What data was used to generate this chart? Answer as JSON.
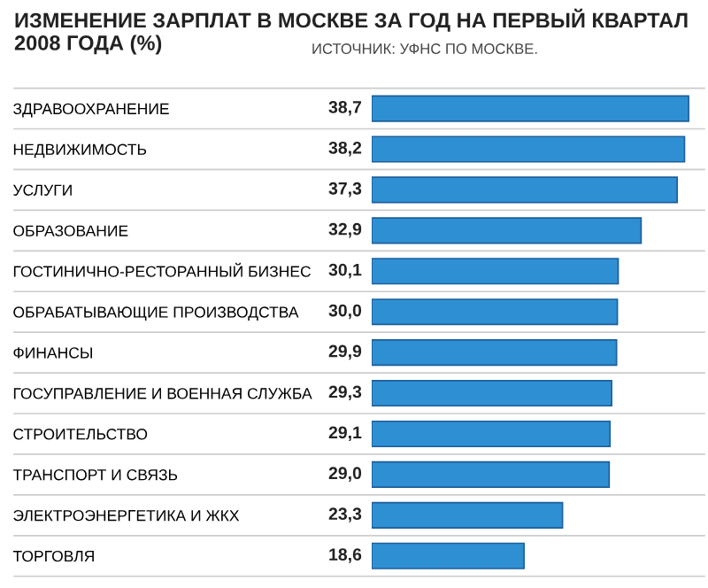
{
  "chart_data": {
    "type": "bar",
    "orientation": "horizontal",
    "title": "ИЗМЕНЕНИЕ ЗАРПЛАТ В МОСКВЕ ЗА ГОД НА ПЕРВЫЙ КВАРТАЛ 2008 ГОДА (%)",
    "annotations": [
      "ИСТОЧНИК: УФНС ПО МОСКВЕ."
    ],
    "categories": [
      "ЗДРАВООХРАНЕНИЕ",
      "НЕДВИЖИМОСТЬ",
      "УСЛУГИ",
      "ОБРАЗОВАНИЕ",
      "ГОСТИНИЧНО-РЕСТОРАННЫЙ БИЗНЕС",
      "ОБРАБАТЫВАЮЩИЕ ПРОИЗВОДСТВА",
      "ФИНАНСЫ",
      "ГОСУПРАВЛЕНИЕ И ВОЕННАЯ СЛУЖБА",
      "СТРОИТЕЛЬСТВО",
      "ТРАНСПОРТ И СВЯЗЬ",
      "ЭЛЕКТРОЭНЕРГЕТИКА И ЖКХ",
      "ТОРГОВЛЯ"
    ],
    "values": [
      38.7,
      38.2,
      37.3,
      32.9,
      30.1,
      30.0,
      29.9,
      29.3,
      29.1,
      29.0,
      23.3,
      18.6
    ],
    "value_labels": [
      "38,7",
      "38,2",
      "37,3",
      "32,9",
      "30,1",
      "30,0",
      "29,9",
      "29,3",
      "29,1",
      "29,0",
      "23,3",
      "18,6"
    ],
    "color": "#2f8fd3"
  }
}
